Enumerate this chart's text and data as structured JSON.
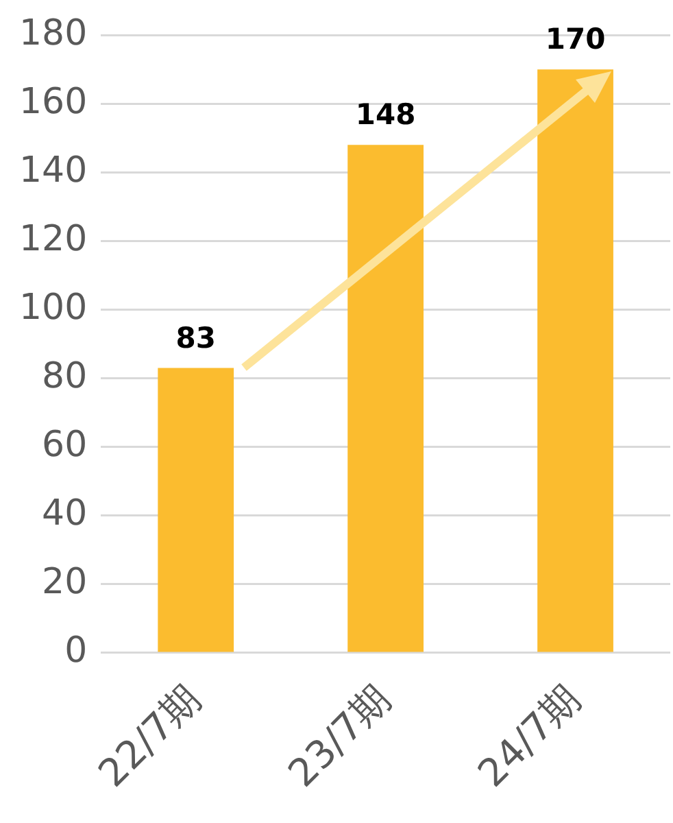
{
  "chart_data": {
    "type": "bar",
    "categories": [
      "22/7期",
      "23/7期",
      "24/7期"
    ],
    "values": [
      83,
      148,
      170
    ],
    "color": "#fbbc2f",
    "ylim": [
      0,
      180
    ],
    "yticks": [
      0,
      20,
      40,
      60,
      80,
      100,
      120,
      140,
      160,
      180
    ],
    "grid": "y",
    "data_labels": true
  }
}
